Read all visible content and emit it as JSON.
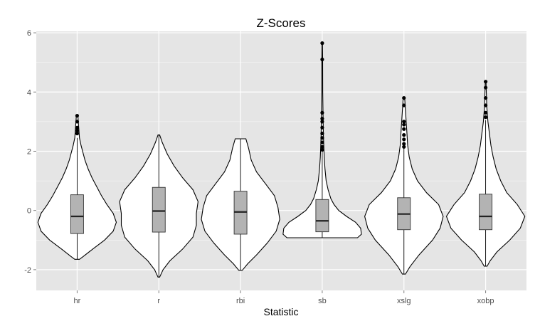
{
  "chart_data": {
    "type": "violin",
    "title": "Z-Scores",
    "xlabel": "Statistic",
    "ylabel": "",
    "ylim": [
      -2.7,
      6.05
    ],
    "yticks": [
      -2,
      0,
      2,
      4,
      6
    ],
    "grid": true,
    "legend": "none",
    "colors": {
      "panel": "#e5e5e5",
      "grid": "#ffffff",
      "box_fill": "#b3b3b3",
      "outline": "#000000"
    },
    "categories": [
      "hr",
      "r",
      "rbi",
      "sb",
      "xslg",
      "xobp"
    ],
    "groups": [
      {
        "name": "hr",
        "min": -1.65,
        "q1": -0.78,
        "median": -0.2,
        "q3": 0.53,
        "max": 2.45,
        "outliers": [
          2.6,
          2.7,
          2.8,
          3.0,
          3.2
        ],
        "density": [
          [
            -1.65,
            0.03
          ],
          [
            -1.55,
            0.08
          ],
          [
            -1.3,
            0.2
          ],
          [
            -1.0,
            0.35
          ],
          [
            -0.7,
            0.46
          ],
          [
            -0.4,
            0.5
          ],
          [
            -0.1,
            0.46
          ],
          [
            0.2,
            0.38
          ],
          [
            0.5,
            0.31
          ],
          [
            0.8,
            0.25
          ],
          [
            1.1,
            0.19
          ],
          [
            1.4,
            0.14
          ],
          [
            1.7,
            0.1
          ],
          [
            2.0,
            0.07
          ],
          [
            2.2,
            0.05
          ],
          [
            2.45,
            0.03
          ],
          [
            3.2,
            0.01
          ]
        ]
      },
      {
        "name": "r",
        "min": -2.25,
        "q1": -0.73,
        "median": -0.02,
        "q3": 0.78,
        "max": 2.55,
        "outliers": [],
        "density": [
          [
            -2.25,
            0.01
          ],
          [
            -2.0,
            0.05
          ],
          [
            -1.7,
            0.13
          ],
          [
            -1.3,
            0.28
          ],
          [
            -0.9,
            0.4
          ],
          [
            -0.5,
            0.44
          ],
          [
            -0.1,
            0.44
          ],
          [
            0.3,
            0.46
          ],
          [
            0.7,
            0.4
          ],
          [
            1.1,
            0.28
          ],
          [
            1.5,
            0.18
          ],
          [
            1.9,
            0.1
          ],
          [
            2.3,
            0.04
          ],
          [
            2.55,
            0.01
          ]
        ]
      },
      {
        "name": "rbi",
        "min": -2.02,
        "q1": -0.8,
        "median": -0.05,
        "q3": 0.65,
        "max": 2.42,
        "outliers": [],
        "density": [
          [
            -2.02,
            0.02
          ],
          [
            -1.8,
            0.08
          ],
          [
            -1.5,
            0.18
          ],
          [
            -1.1,
            0.3
          ],
          [
            -0.7,
            0.4
          ],
          [
            -0.3,
            0.44
          ],
          [
            0.1,
            0.42
          ],
          [
            0.5,
            0.38
          ],
          [
            0.9,
            0.28
          ],
          [
            1.3,
            0.18
          ],
          [
            1.7,
            0.12
          ],
          [
            2.1,
            0.09
          ],
          [
            2.42,
            0.06
          ]
        ]
      },
      {
        "name": "sb",
        "min": -0.92,
        "q1": -0.72,
        "median": -0.35,
        "q3": 0.37,
        "max": 2.0,
        "outliers": [
          2.05,
          2.15,
          2.3,
          2.45,
          2.6,
          2.8,
          3.0,
          3.1,
          3.3,
          5.1,
          5.65
        ],
        "density": [
          [
            -0.92,
            0.9
          ],
          [
            -0.8,
            1.0
          ],
          [
            -0.6,
            0.98
          ],
          [
            -0.4,
            0.85
          ],
          [
            -0.2,
            0.62
          ],
          [
            0.0,
            0.42
          ],
          [
            0.2,
            0.3
          ],
          [
            0.4,
            0.22
          ],
          [
            0.7,
            0.15
          ],
          [
            1.0,
            0.1
          ],
          [
            1.4,
            0.07
          ],
          [
            1.8,
            0.05
          ],
          [
            2.5,
            0.03
          ],
          [
            3.3,
            0.02
          ],
          [
            4.0,
            0.012
          ],
          [
            5.0,
            0.01
          ],
          [
            5.65,
            0.005
          ]
        ]
      },
      {
        "name": "xslg",
        "min": -2.15,
        "q1": -0.65,
        "median": -0.12,
        "q3": 0.43,
        "max": 2.1,
        "outliers": [
          2.15,
          2.25,
          2.4,
          2.55,
          2.75,
          2.9,
          3.0,
          3.55,
          3.8
        ],
        "density": [
          [
            -2.15,
            0.02
          ],
          [
            -1.9,
            0.08
          ],
          [
            -1.5,
            0.2
          ],
          [
            -1.0,
            0.38
          ],
          [
            -0.6,
            0.48
          ],
          [
            -0.2,
            0.52
          ],
          [
            0.2,
            0.46
          ],
          [
            0.6,
            0.3
          ],
          [
            1.0,
            0.18
          ],
          [
            1.4,
            0.11
          ],
          [
            1.8,
            0.07
          ],
          [
            2.2,
            0.05
          ],
          [
            2.6,
            0.04
          ],
          [
            3.0,
            0.03
          ],
          [
            3.8,
            0.01
          ]
        ]
      },
      {
        "name": "xobp",
        "min": -1.88,
        "q1": -0.65,
        "median": -0.2,
        "q3": 0.55,
        "max": 3.05,
        "outliers": [
          3.15,
          3.3,
          3.55,
          3.8,
          4.15,
          4.35
        ],
        "density": [
          [
            -1.88,
            0.02
          ],
          [
            -1.7,
            0.06
          ],
          [
            -1.4,
            0.15
          ],
          [
            -1.0,
            0.32
          ],
          [
            -0.6,
            0.46
          ],
          [
            -0.2,
            0.52
          ],
          [
            0.2,
            0.42
          ],
          [
            0.6,
            0.28
          ],
          [
            1.0,
            0.2
          ],
          [
            1.4,
            0.14
          ],
          [
            1.8,
            0.1
          ],
          [
            2.2,
            0.07
          ],
          [
            2.6,
            0.05
          ],
          [
            3.0,
            0.03
          ],
          [
            3.5,
            0.015
          ],
          [
            4.35,
            0.005
          ]
        ]
      }
    ]
  }
}
